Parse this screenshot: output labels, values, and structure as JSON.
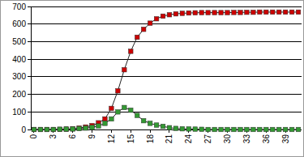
{
  "chart_data": {
    "type": "line",
    "x": [
      0,
      1,
      2,
      3,
      4,
      5,
      6,
      7,
      8,
      9,
      10,
      11,
      12,
      13,
      14,
      15,
      16,
      17,
      18,
      19,
      20,
      21,
      22,
      23,
      24,
      25,
      26,
      27,
      28,
      29,
      30,
      31,
      32,
      33,
      34,
      35,
      36,
      37,
      38,
      39,
      40,
      41
    ],
    "series": [
      {
        "color": "#cc0000",
        "marker": "square",
        "values": [
          0,
          0,
          0,
          0,
          1,
          2,
          4,
          8,
          14,
          22,
          38,
          60,
          120,
          220,
          340,
          445,
          525,
          570,
          605,
          630,
          645,
          653,
          658,
          661,
          663,
          664,
          665,
          665,
          665,
          665,
          665,
          666,
          666,
          667,
          667,
          668,
          668,
          668,
          668,
          668,
          668,
          668
        ]
      },
      {
        "color": "#339933",
        "marker": "square",
        "values": [
          0,
          0,
          0,
          0,
          1,
          2,
          3,
          5,
          8,
          12,
          20,
          35,
          60,
          100,
          125,
          110,
          80,
          50,
          35,
          25,
          18,
          10,
          6,
          4,
          3,
          2,
          1,
          0,
          0,
          0,
          0,
          0,
          0,
          0,
          0,
          0,
          0,
          0,
          0,
          0,
          0,
          0
        ]
      }
    ],
    "xlim": [
      -0.5,
      41.5
    ],
    "xticks": [
      0,
      3,
      6,
      9,
      12,
      15,
      18,
      21,
      24,
      27,
      30,
      33,
      36,
      39
    ],
    "ylim": [
      0,
      700
    ],
    "yticks": [
      0,
      100,
      200,
      300,
      400,
      500,
      600,
      700
    ],
    "grid": true
  }
}
